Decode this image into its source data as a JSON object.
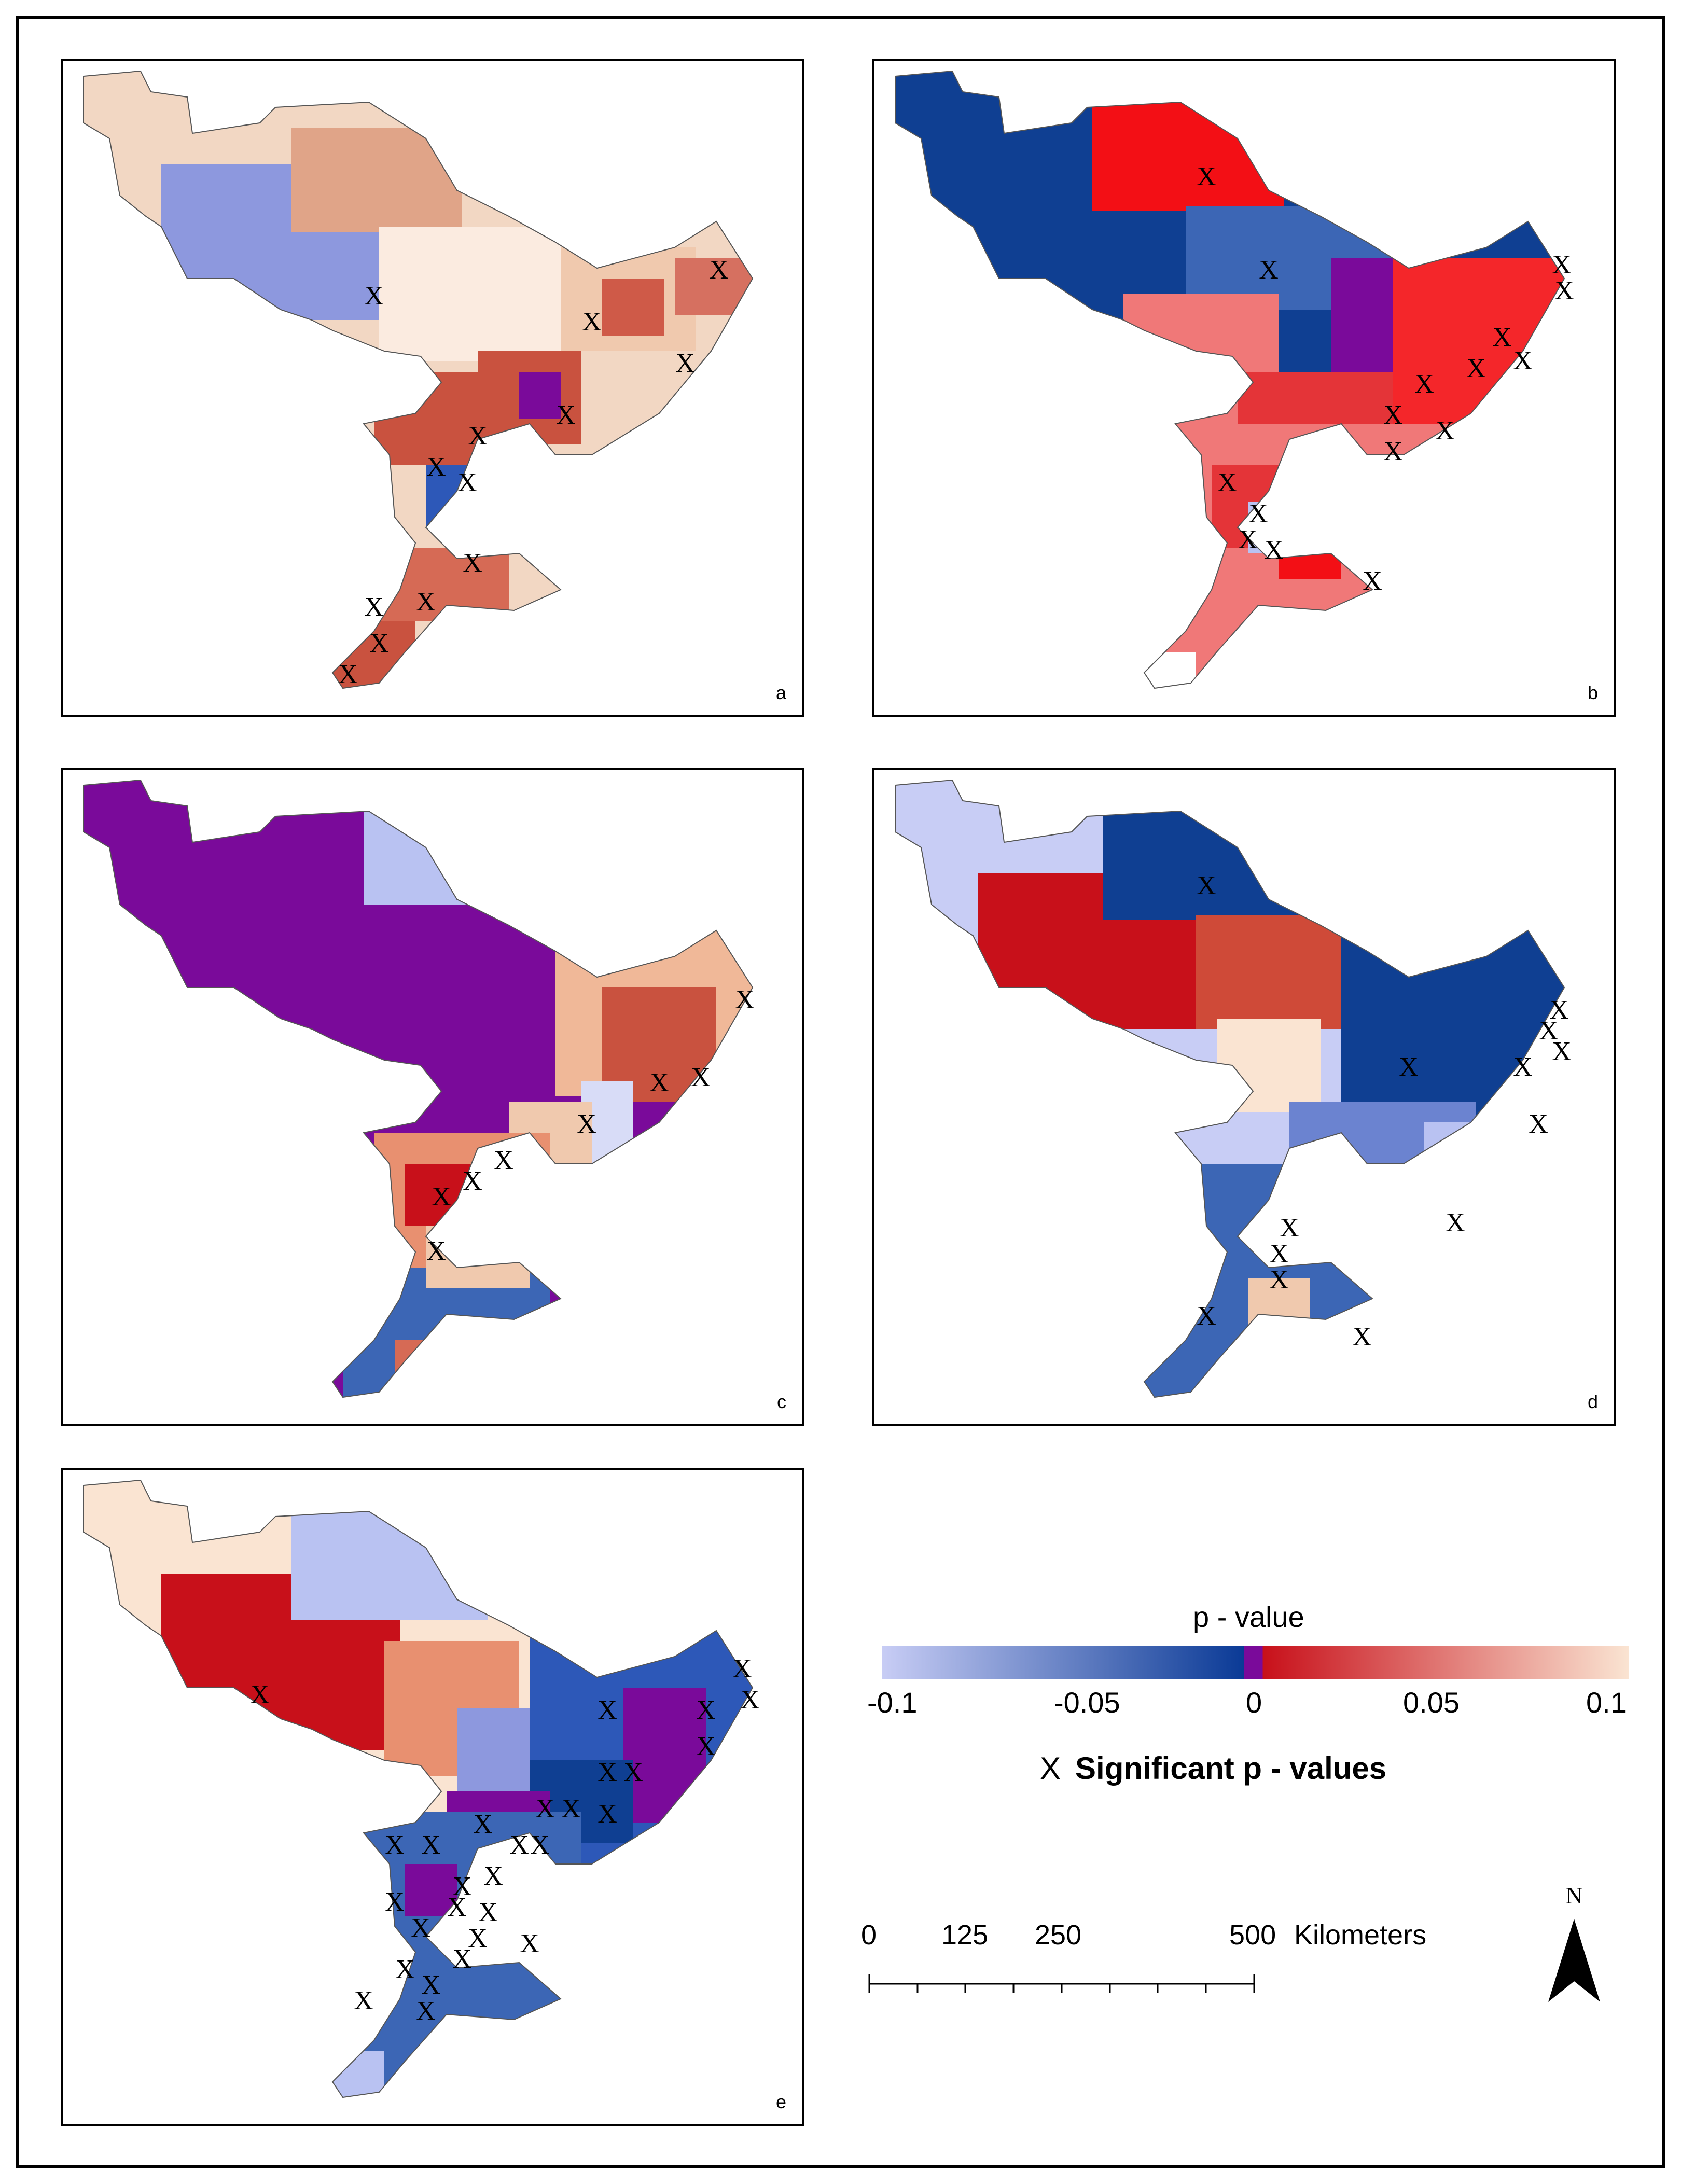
{
  "panels": [
    {
      "letter": "a"
    },
    {
      "letter": "b"
    },
    {
      "letter": "c"
    },
    {
      "letter": "d"
    },
    {
      "letter": "e"
    }
  ],
  "legend": {
    "title": "p - value",
    "ticks": [
      "-0.1",
      "-0.05",
      "0",
      "0.05",
      "0.1"
    ],
    "tick_values": [
      -0.1,
      -0.05,
      0,
      0.05,
      0.1
    ],
    "colors": {
      "neg_light": "#c8cdf5",
      "neg_dark": "#0a3a96",
      "zero": "#7a0a9a",
      "pos_dark": "#c8101a",
      "pos_light": "#fae4d2"
    },
    "marker_symbol": "X",
    "marker_label": "Significant p - values"
  },
  "scalebar": {
    "labels": [
      "0",
      "125",
      "250",
      "500"
    ],
    "unit": "Kilometers",
    "values_km": [
      0,
      125,
      250,
      500
    ]
  },
  "north_arrow": {
    "label": "N"
  }
}
